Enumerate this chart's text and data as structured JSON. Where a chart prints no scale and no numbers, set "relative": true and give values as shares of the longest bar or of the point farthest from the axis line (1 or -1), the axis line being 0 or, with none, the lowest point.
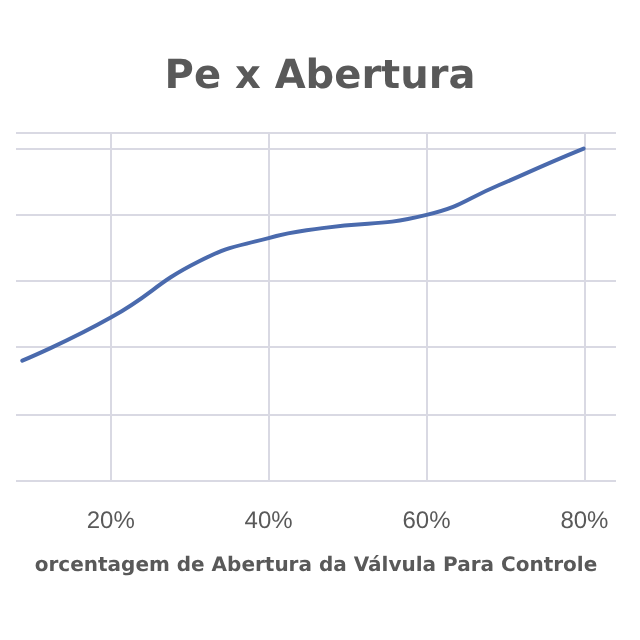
{
  "chart_data": {
    "type": "line",
    "title": "Pe x Abertura",
    "xlabel": "orcentagem de Abertura da Válvula Para Controle",
    "relative": true,
    "x": [
      8.8,
      20,
      31.2,
      40,
      46.8,
      60,
      69.2,
      75.9,
      79.9
    ],
    "series": [
      {
        "color": "#4a6aad",
        "values": [
          0.36,
          0.49,
          0.66,
          0.73,
          0.76,
          0.8,
          0.89,
          0.96,
          1.0
        ]
      }
    ],
    "xlim": [
      8,
      84
    ],
    "xticks": [
      {
        "value": 20,
        "label": "20%"
      },
      {
        "value": 40,
        "label": "40%"
      },
      {
        "value": 60,
        "label": "60%"
      },
      {
        "value": 80,
        "label": "80%"
      }
    ],
    "grid": true,
    "marker": "none",
    "line_style": "solid"
  }
}
